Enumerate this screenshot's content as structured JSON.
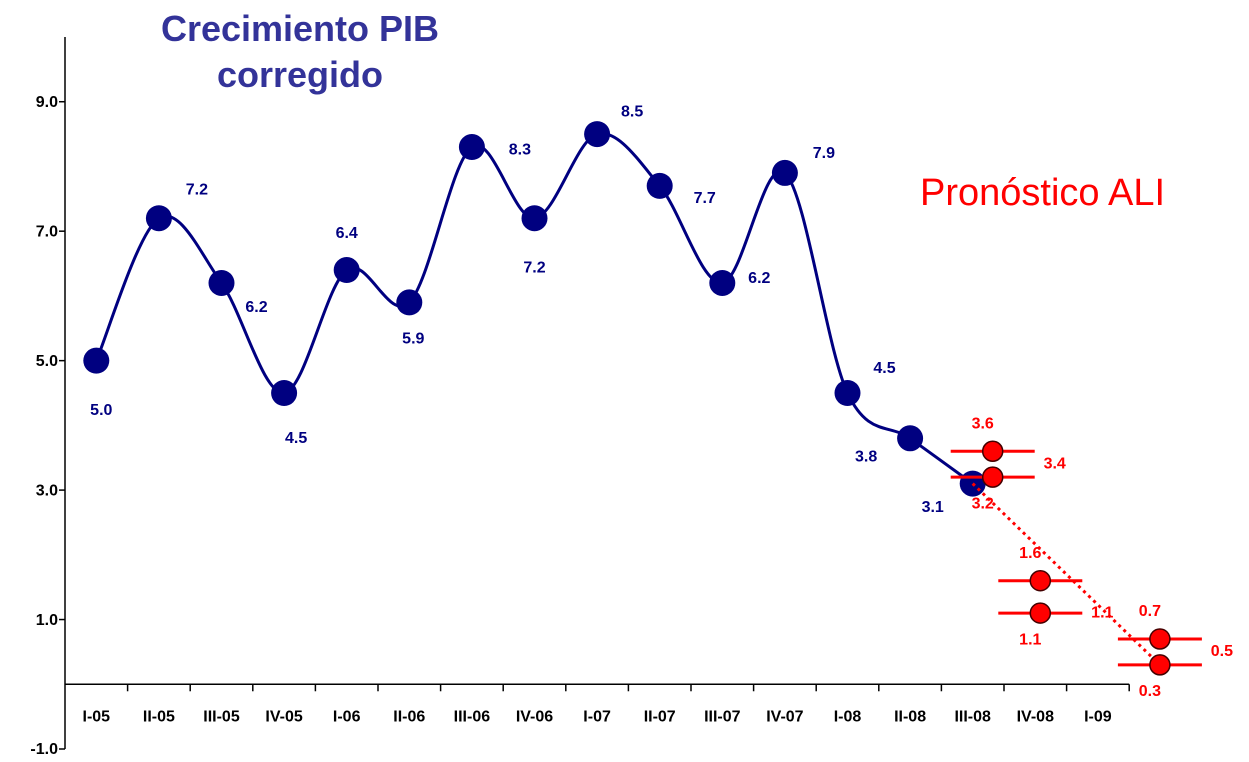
{
  "chart_data": {
    "type": "line",
    "title": "Crecimiento PIB corregido",
    "categories": [
      "I-05",
      "II-05",
      "III-05",
      "IV-05",
      "I-06",
      "II-06",
      "III-06",
      "IV-06",
      "I-07",
      "II-07",
      "III-07",
      "IV-07",
      "I-08",
      "II-08",
      "III-08",
      "IV-08",
      "I-09"
    ],
    "series": [
      {
        "color": "#000080",
        "values": [
          5.0,
          7.2,
          6.2,
          4.5,
          6.4,
          5.9,
          8.3,
          7.2,
          8.5,
          7.7,
          6.2,
          7.9,
          4.5,
          3.8,
          3.1,
          null,
          null
        ],
        "value_labels": [
          "5.0",
          "7.2",
          "6.2",
          "4.5",
          "6.4",
          "5.9",
          "8.3",
          "7.2",
          "8.5",
          "7.7",
          "6.2",
          "7.9",
          "4.5",
          "3.8",
          "3.1",
          null,
          null
        ]
      }
    ],
    "forecast": {
      "label": "Pronóstico ALI",
      "color": "#ff0000",
      "high": [
        null,
        null,
        null,
        null,
        null,
        null,
        null,
        null,
        null,
        null,
        null,
        null,
        null,
        null,
        3.6,
        1.6,
        0.7
      ],
      "mid": [
        null,
        null,
        null,
        null,
        null,
        null,
        null,
        null,
        null,
        null,
        null,
        null,
        null,
        null,
        3.4,
        1.1,
        0.5
      ],
      "low": [
        null,
        null,
        null,
        null,
        null,
        null,
        null,
        null,
        null,
        null,
        null,
        null,
        null,
        null,
        3.2,
        1.1,
        0.3
      ]
    },
    "ylim": [
      -1,
      10
    ],
    "yticks": [
      {
        "value": 9,
        "label": "9.0"
      },
      {
        "value": 7,
        "label": "7.0"
      },
      {
        "value": 5,
        "label": "5.0"
      },
      {
        "value": 3,
        "label": "3.0"
      },
      {
        "value": 1,
        "label": "1.0"
      },
      {
        "value": -1,
        "label": "-1.0"
      }
    ]
  }
}
